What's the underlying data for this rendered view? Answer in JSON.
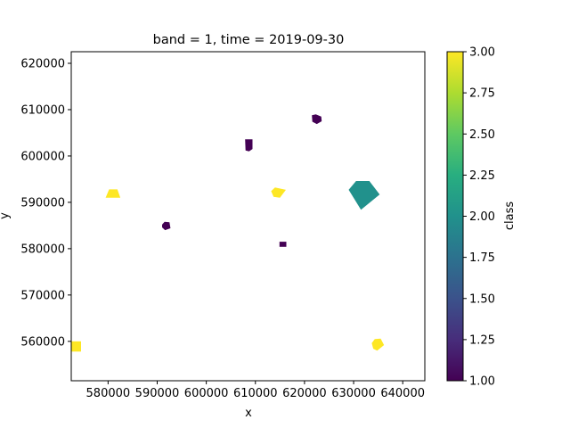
{
  "chart_data": {
    "type": "heatmap",
    "title": "band = 1, time = 2019-09-30",
    "xlabel": "x",
    "ylabel": "y",
    "xlim": [
      572500,
      644500
    ],
    "ylim": [
      551500,
      622500
    ],
    "xticks": [
      580000,
      590000,
      600000,
      610000,
      620000,
      630000,
      640000
    ],
    "xtick_labels": [
      "580000",
      "590000",
      "600000",
      "610000",
      "620000",
      "630000",
      "640000"
    ],
    "yticks": [
      560000,
      570000,
      580000,
      590000,
      600000,
      610000,
      620000
    ],
    "ytick_labels": [
      "560000",
      "570000",
      "580000",
      "590000",
      "600000",
      "610000",
      "620000"
    ],
    "colorbar": {
      "label": "class",
      "range": [
        1.0,
        3.0
      ],
      "ticks": [
        1.0,
        1.25,
        1.5,
        1.75,
        2.0,
        2.25,
        2.5,
        2.75,
        3.0
      ],
      "tick_labels": [
        "1.00",
        "1.25",
        "1.50",
        "1.75",
        "2.00",
        "2.25",
        "2.50",
        "2.75",
        "3.00"
      ],
      "colormap": "viridis"
    },
    "polygons": [
      {
        "class": 3,
        "points": [
          [
            579500,
            591000
          ],
          [
            582500,
            591000
          ],
          [
            581900,
            592800
          ],
          [
            580200,
            592800
          ]
        ]
      },
      {
        "class": 1,
        "points": [
          [
            591000,
            584600
          ],
          [
            591600,
            584000
          ],
          [
            592700,
            584400
          ],
          [
            592500,
            585700
          ],
          [
            591500,
            585800
          ],
          [
            591000,
            585200
          ]
        ]
      },
      {
        "class": 1,
        "points": [
          [
            607900,
            603600
          ],
          [
            609400,
            603600
          ],
          [
            609400,
            601500
          ],
          [
            608700,
            601000
          ],
          [
            608000,
            601200
          ]
        ]
      },
      {
        "class": 3,
        "points": [
          [
            613200,
            592400
          ],
          [
            613700,
            591200
          ],
          [
            615000,
            591000
          ],
          [
            616200,
            592700
          ],
          [
            614000,
            593200
          ]
        ]
      },
      {
        "class": 1,
        "points": [
          [
            614900,
            581500
          ],
          [
            616300,
            581500
          ],
          [
            616300,
            580400
          ],
          [
            614900,
            580400
          ]
        ]
      },
      {
        "class": 1,
        "points": [
          [
            621500,
            608800
          ],
          [
            622300,
            609000
          ],
          [
            623400,
            608500
          ],
          [
            623500,
            607500
          ],
          [
            622500,
            606900
          ],
          [
            621600,
            607400
          ]
        ]
      },
      {
        "class": 2,
        "points": [
          [
            629000,
            592700
          ],
          [
            630500,
            594600
          ],
          [
            633200,
            594600
          ],
          [
            635300,
            591700
          ],
          [
            631500,
            588400
          ]
        ]
      },
      {
        "class": 3,
        "points": [
          [
            633700,
            559600
          ],
          [
            634300,
            560500
          ],
          [
            635500,
            560600
          ],
          [
            636200,
            559200
          ],
          [
            634800,
            558000
          ],
          [
            634000,
            558400
          ]
        ]
      },
      {
        "class": 3,
        "points": [
          [
            572500,
            560000
          ],
          [
            574500,
            560000
          ],
          [
            574500,
            557800
          ],
          [
            572500,
            557800
          ]
        ]
      }
    ]
  }
}
